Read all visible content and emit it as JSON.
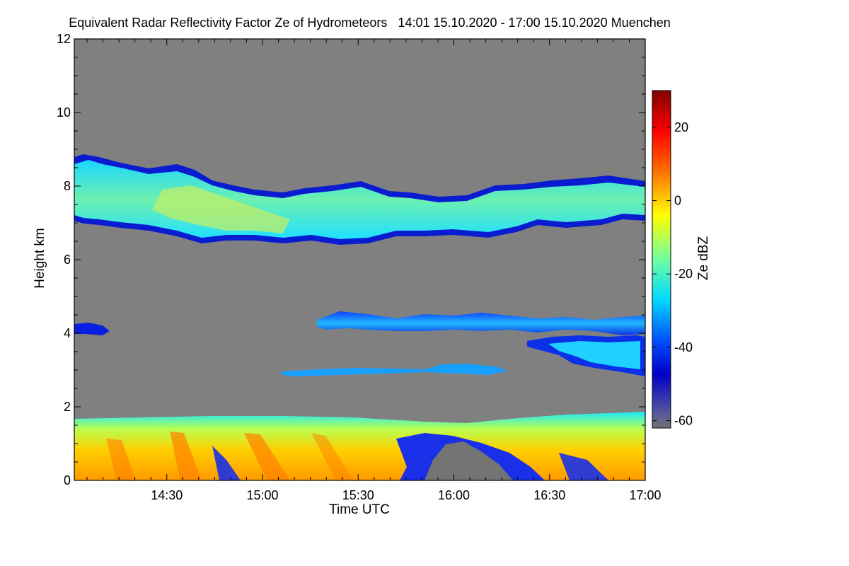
{
  "title": "Equivalent Radar Reflectivity Factor Ze of Hydrometeors   14:01 15.10.2020 - 17:00 15.10.2020 Muenchen",
  "chart_data": {
    "type": "heatmap",
    "xlabel": "Time UTC",
    "ylabel": "Height km",
    "x_ticks": [
      "14:30",
      "15:00",
      "15:30",
      "16:00",
      "16:30",
      "17:00"
    ],
    "x_tick_minutes": [
      870,
      900,
      930,
      960,
      990,
      1020
    ],
    "xlim_minutes": [
      841,
      1020
    ],
    "y_ticks": [
      "0",
      "2",
      "4",
      "6",
      "8",
      "10",
      "12"
    ],
    "y_tick_values": [
      0,
      2,
      4,
      6,
      8,
      10,
      12
    ],
    "ylim": [
      0,
      12
    ],
    "colorbar": {
      "label": "Ze dBZ",
      "ticks": [
        "20",
        "0",
        "-20",
        "-40",
        "-60"
      ],
      "tick_values": [
        20,
        0,
        -20,
        -40,
        -60
      ],
      "range": [
        -62,
        30
      ]
    },
    "background_color": "#808080",
    "layers": [
      {
        "name": "upper cloud",
        "t_start": 841,
        "t_end": 1020,
        "base_km": 6.5,
        "top_km": 8.5,
        "ze_mean_dbz": -20
      },
      {
        "name": "mid-level layer",
        "t_start": 919,
        "t_end": 1020,
        "base_km": 3.9,
        "top_km": 4.5,
        "ze_mean_dbz": -40
      },
      {
        "name": "mid-level fragment",
        "t_start": 841,
        "t_end": 851,
        "base_km": 3.9,
        "top_km": 4.2,
        "ze_mean_dbz": -42
      },
      {
        "name": "lower mid layer",
        "t_start": 983,
        "t_end": 1020,
        "base_km": 2.8,
        "top_km": 3.8,
        "ze_mean_dbz": -33
      },
      {
        "name": "thin layer",
        "t_start": 914,
        "t_end": 973,
        "base_km": 2.8,
        "top_km": 3.1,
        "ze_mean_dbz": -38
      },
      {
        "name": "precipitation",
        "t_start": 841,
        "t_end": 1020,
        "base_km": 0.0,
        "top_km": 1.65,
        "ze_mean_dbz": -5
      }
    ]
  }
}
